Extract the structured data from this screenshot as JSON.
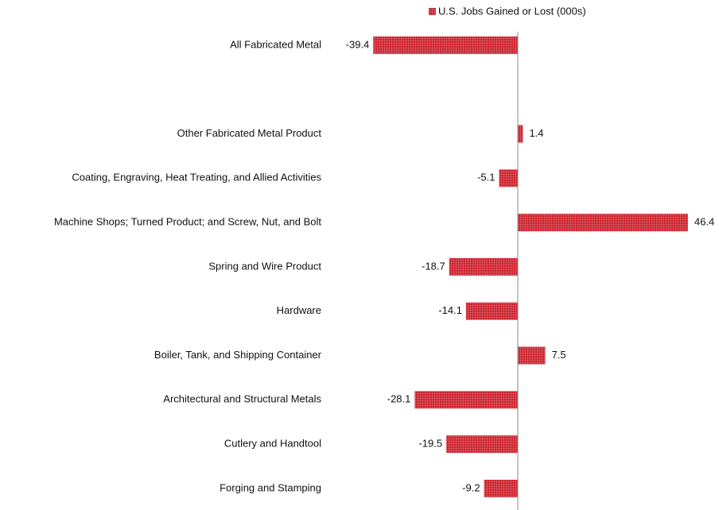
{
  "chart_data": {
    "type": "bar",
    "orientation": "horizontal",
    "series": [
      {
        "name": "U.S. Jobs Gained or Lost (000s)",
        "color": "#cc1f2a",
        "values": [
          -39.4,
          null,
          1.4,
          -5.1,
          46.4,
          -18.7,
          -14.1,
          7.5,
          -28.1,
          -19.5,
          -9.2
        ]
      }
    ],
    "categories": [
      "All Fabricated Metal",
      null,
      "Other Fabricated Metal Product",
      "Coating, Engraving, Heat Treating, and Allied Activities",
      "Machine Shops; Turned Product; and Screw, Nut, and Bolt",
      "Spring and Wire Product",
      "Hardware",
      "Boiler, Tank, and Shipping Container",
      "Architectural and Structural Metals",
      "Cutlery and Handtool",
      "Forging and Stamping"
    ],
    "xlim": [
      -50,
      50
    ],
    "legend": "top"
  }
}
